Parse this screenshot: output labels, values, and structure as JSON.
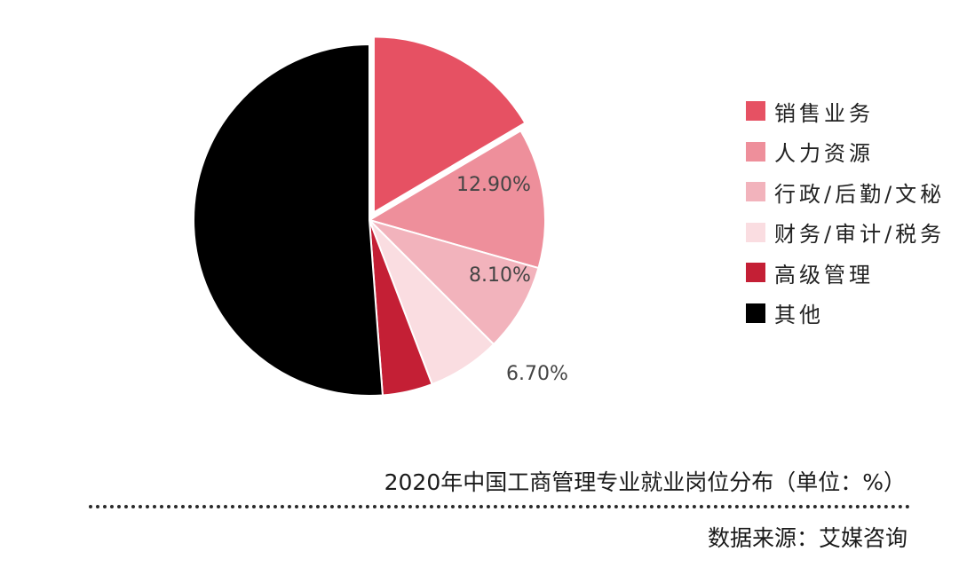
{
  "chart_data": {
    "type": "pie",
    "title": "2020年中国工商管理专业就业岗位分布（单位：%）",
    "source": "数据来源：艾媒咨询",
    "slices": [
      {
        "label": "销售业务",
        "value": 16.5,
        "color": "#e65163",
        "value_label": ""
      },
      {
        "label": "人力资源",
        "value": 12.9,
        "color": "#ee8f9b",
        "value_label": "12.90%"
      },
      {
        "label": "行政/后勤/文秘",
        "value": 8.1,
        "color": "#f2b3bc",
        "value_label": "8.10%"
      },
      {
        "label": "财务/审计/税务",
        "value": 6.7,
        "color": "#fadde1",
        "value_label": "6.70%"
      },
      {
        "label": "高级管理",
        "value": 4.6,
        "color": "#c41f35",
        "value_label": ""
      },
      {
        "label": "其他",
        "value": 51.2,
        "color": "#000000",
        "value_label": ""
      }
    ],
    "legend_position": "right"
  }
}
